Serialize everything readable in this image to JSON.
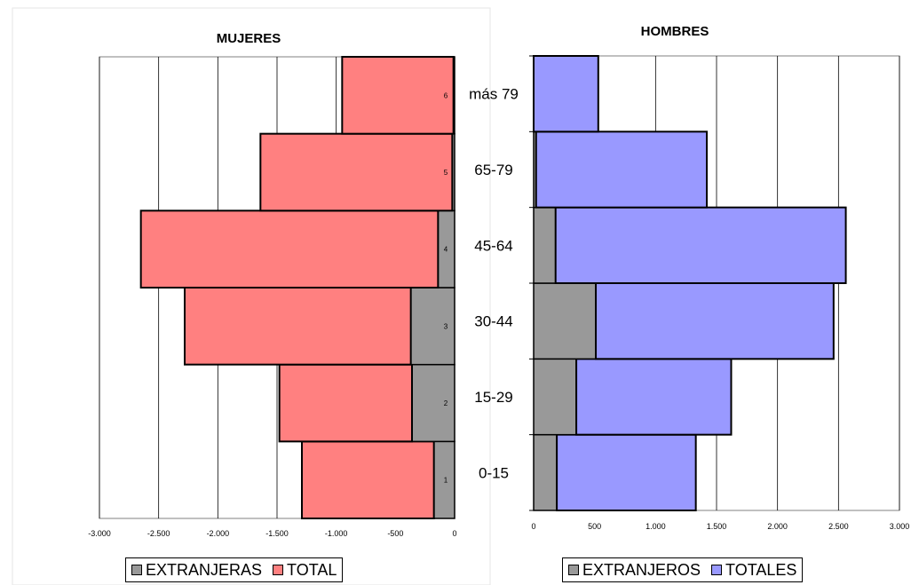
{
  "chart_data": [
    {
      "type": "bar",
      "orientation": "horizontal",
      "title": "MUJERES",
      "categories": [
        "1",
        "2",
        "3",
        "4",
        "5",
        "6"
      ],
      "xlim": [
        -3000,
        0
      ],
      "xticks": [
        "-3.000",
        "-2.500",
        "-2.000",
        "-1.500",
        "-1.000",
        "-500",
        "0"
      ],
      "grid": true,
      "series": [
        {
          "name": "EXTRANJERAS",
          "color": "#999999",
          "values": [
            -175,
            -360,
            -370,
            -140,
            -20,
            -10
          ]
        },
        {
          "name": "TOTAL",
          "color": "#ff8080",
          "values": [
            -1290,
            -1480,
            -2280,
            -2650,
            -1640,
            -950
          ]
        }
      ]
    },
    {
      "type": "bar",
      "orientation": "horizontal",
      "title": "HOMBRES",
      "categories": [
        "0-15",
        "15-29",
        "30-44",
        "45-64",
        "65-79",
        "más 79"
      ],
      "xlim": [
        0,
        3000
      ],
      "xticks": [
        "0",
        "500",
        "1.000",
        "1.500",
        "2.000",
        "2.500",
        "3.000"
      ],
      "grid": true,
      "series": [
        {
          "name": "EXTRANJEROS",
          "color": "#999999",
          "values": [
            190,
            350,
            510,
            180,
            20,
            0
          ]
        },
        {
          "name": "TOTALES",
          "color": "#9999ff",
          "values": [
            1330,
            1620,
            2460,
            2560,
            1420,
            530
          ]
        }
      ]
    }
  ]
}
